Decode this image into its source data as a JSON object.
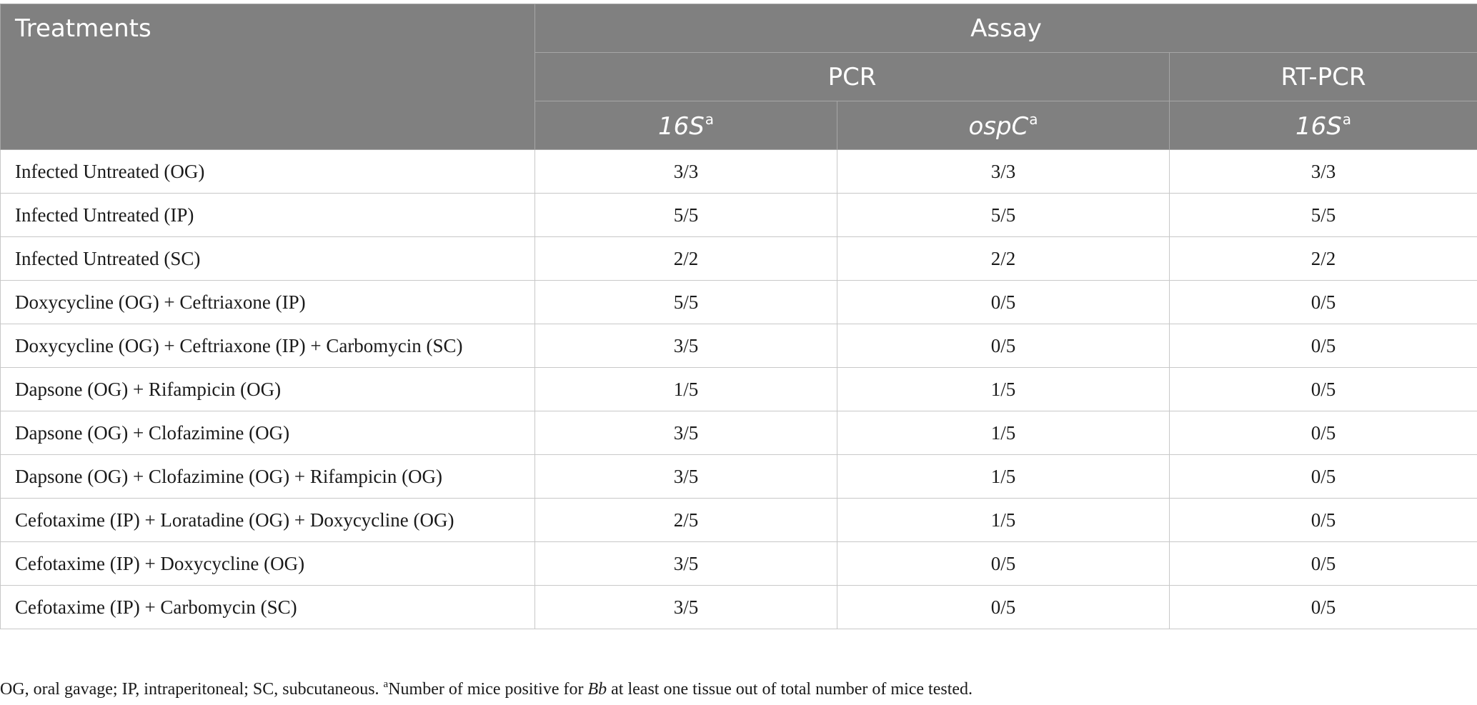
{
  "header": {
    "treatments": "Treatments",
    "assay": "Assay",
    "pcr": "PCR",
    "rtpcr": "RT-PCR",
    "gene_16s": "16S",
    "gene_ospc": "ospC",
    "marker": "a"
  },
  "rows": [
    {
      "treatment": "Infected Untreated (OG)",
      "pcr_16s": "3/3",
      "pcr_ospc": "3/3",
      "rtpcr_16s": "3/3"
    },
    {
      "treatment": "Infected Untreated (IP)",
      "pcr_16s": "5/5",
      "pcr_ospc": "5/5",
      "rtpcr_16s": "5/5"
    },
    {
      "treatment": "Infected Untreated (SC)",
      "pcr_16s": "2/2",
      "pcr_ospc": "2/2",
      "rtpcr_16s": "2/2"
    },
    {
      "treatment": "Doxycycline (OG) + Ceftriaxone (IP)",
      "pcr_16s": "5/5",
      "pcr_ospc": "0/5",
      "rtpcr_16s": "0/5"
    },
    {
      "treatment": "Doxycycline (OG) + Ceftriaxone (IP) + Carbomycin (SC)",
      "pcr_16s": "3/5",
      "pcr_ospc": "0/5",
      "rtpcr_16s": "0/5"
    },
    {
      "treatment": "Dapsone (OG) + Rifampicin (OG)",
      "pcr_16s": "1/5",
      "pcr_ospc": "1/5",
      "rtpcr_16s": "0/5"
    },
    {
      "treatment": "Dapsone (OG) + Clofazimine (OG)",
      "pcr_16s": "3/5",
      "pcr_ospc": "1/5",
      "rtpcr_16s": "0/5"
    },
    {
      "treatment": "Dapsone (OG) + Clofazimine (OG) + Rifampicin (OG)",
      "pcr_16s": "3/5",
      "pcr_ospc": "1/5",
      "rtpcr_16s": "0/5"
    },
    {
      "treatment": "Cefotaxime (IP) + Loratadine (OG) + Doxycycline (OG)",
      "pcr_16s": "2/5",
      "pcr_ospc": "1/5",
      "rtpcr_16s": "0/5"
    },
    {
      "treatment": "Cefotaxime (IP) + Doxycycline (OG)",
      "pcr_16s": "3/5",
      "pcr_ospc": "0/5",
      "rtpcr_16s": "0/5"
    },
    {
      "treatment": "Cefotaxime (IP) + Carbomycin (SC)",
      "pcr_16s": "3/5",
      "pcr_ospc": "0/5",
      "rtpcr_16s": "0/5"
    }
  ],
  "footnote": {
    "abbreviations": "OG, oral gavage; IP, intraperitoneal; SC, subcutaneous. ",
    "marker": "a",
    "text_before": "Number of mice positive for ",
    "organism": "Bb",
    "text_after": " at least one tissue out of total number of mice tested."
  }
}
